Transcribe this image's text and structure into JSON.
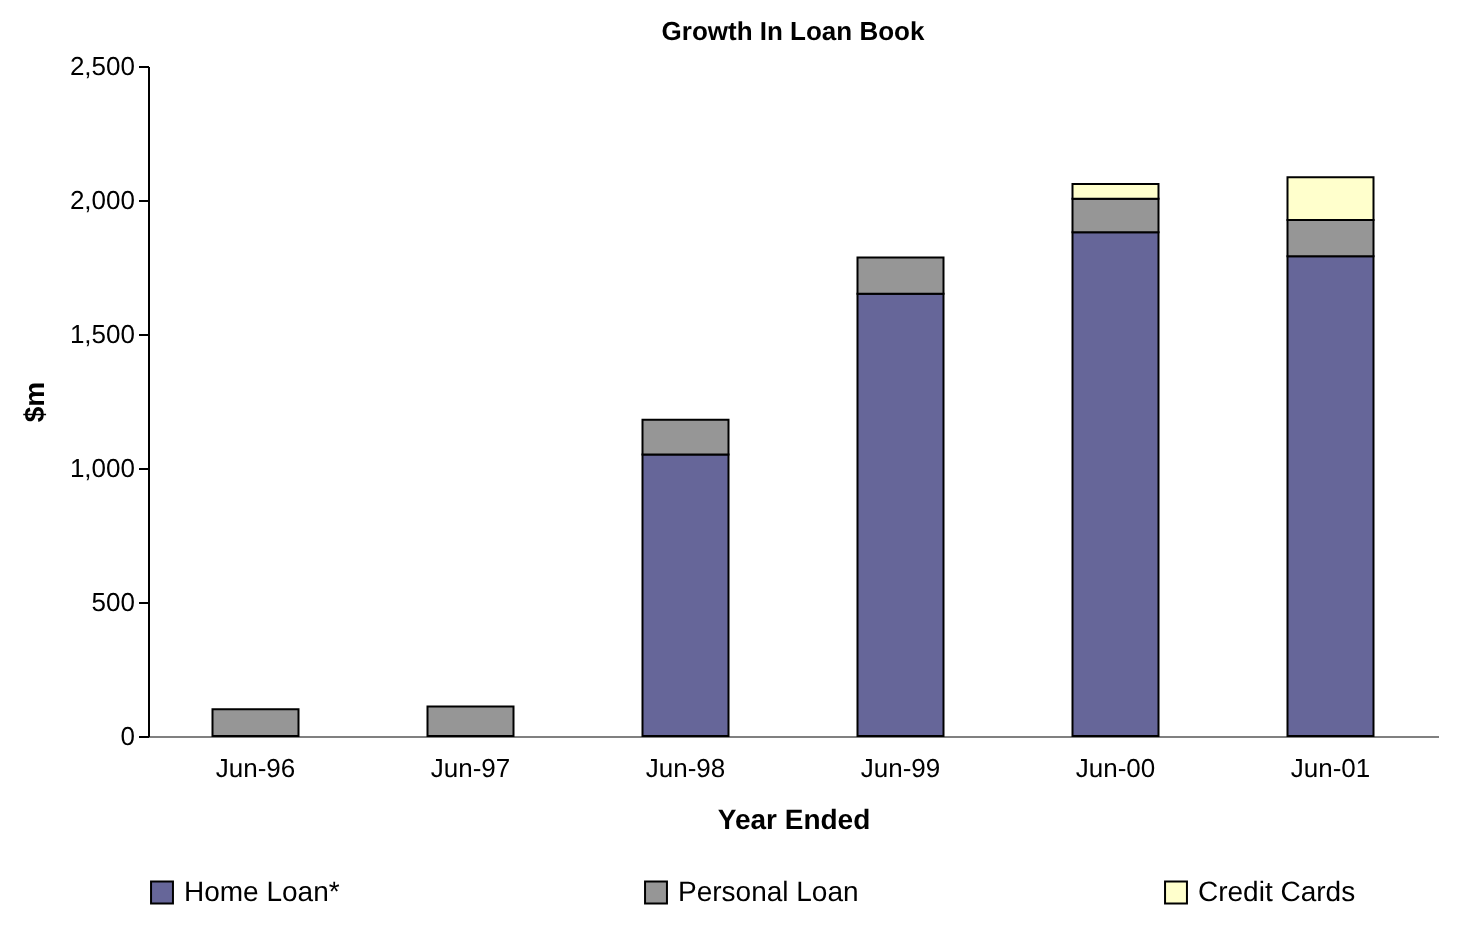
{
  "chart_data": {
    "type": "bar",
    "title": "Growth In Loan Book",
    "xlabel": "Year Ended",
    "ylabel": "$m",
    "categories": [
      "Jun-96",
      "Jun-97",
      "Jun-98",
      "Jun-99",
      "Jun-00",
      "Jun-01"
    ],
    "stacked": true,
    "series": [
      {
        "name": "Home Loan*",
        "color": "#666699",
        "values": [
          null,
          null,
          1050,
          1650,
          1880,
          1790
        ]
      },
      {
        "name": "Personal Loan",
        "color": "#969696",
        "values": [
          100,
          110,
          130,
          135,
          125,
          135
        ]
      },
      {
        "name": "Credit Cards",
        "color": "#ffffcc",
        "values": [
          null,
          null,
          null,
          null,
          55,
          160
        ]
      }
    ],
    "ylim": [
      0,
      2500
    ],
    "yticks": [
      0,
      500,
      {
        "value": 1000,
        "label": "1,000"
      },
      {
        "value": 1500,
        "label": "1,500"
      },
      {
        "value": 2000,
        "label": "2,000"
      },
      {
        "value": 2500,
        "label": "2,500"
      }
    ],
    "grid": false,
    "legend": "bottom"
  }
}
